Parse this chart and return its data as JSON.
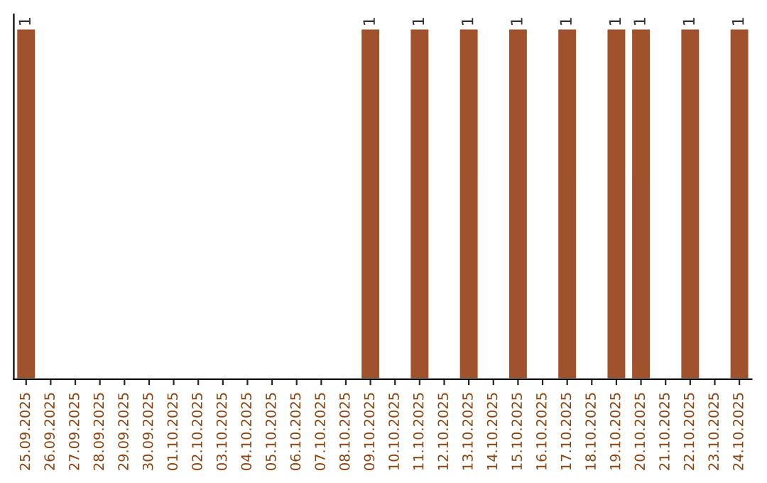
{
  "chart_data": {
    "type": "bar",
    "categories": [
      "25.09.2025",
      "26.09.2025",
      "27.09.2025",
      "28.09.2025",
      "29.09.2025",
      "30.09.2025",
      "01.10.2025",
      "02.10.2025",
      "03.10.2025",
      "04.10.2025",
      "05.10.2025",
      "06.10.2025",
      "07.10.2025",
      "08.10.2025",
      "09.10.2025",
      "10.10.2025",
      "11.10.2025",
      "12.10.2025",
      "13.10.2025",
      "14.10.2025",
      "15.10.2025",
      "16.10.2025",
      "17.10.2025",
      "18.10.2025",
      "19.10.2025",
      "20.10.2025",
      "21.10.2025",
      "22.10.2025",
      "23.10.2025",
      "24.10.2025"
    ],
    "values": [
      1,
      null,
      null,
      null,
      null,
      null,
      null,
      null,
      null,
      null,
      null,
      null,
      null,
      null,
      1,
      null,
      1,
      null,
      1,
      null,
      1,
      null,
      1,
      null,
      1,
      1,
      null,
      1,
      null,
      1
    ],
    "value_labels": [
      "1",
      null,
      null,
      null,
      null,
      null,
      null,
      null,
      null,
      null,
      null,
      null,
      null,
      null,
      "1",
      null,
      "1",
      null,
      "1",
      null,
      "1",
      null,
      "1",
      null,
      "1",
      "1",
      null,
      "1",
      null,
      "1"
    ],
    "color": "#a0522d",
    "tick_labels": "x",
    "grid": false,
    "legend": false
  }
}
